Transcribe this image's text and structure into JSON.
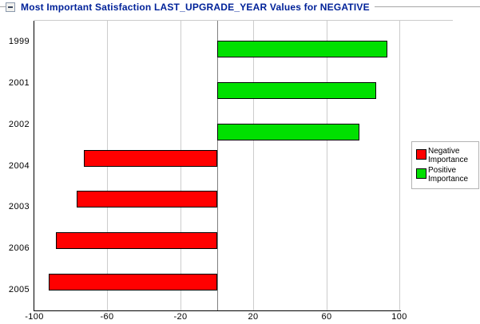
{
  "header": {
    "title": "Most Important Satisfaction LAST_UPGRADE_YEAR Values for NEGATIVE"
  },
  "chart_data": {
    "type": "bar",
    "orientation": "horizontal",
    "title": "Most Important Satisfaction LAST_UPGRADE_YEAR Values for NEGATIVE",
    "categories": [
      "1999",
      "2001",
      "2002",
      "2004",
      "2003",
      "2006",
      "2005"
    ],
    "series": [
      {
        "name": "Negative Importance",
        "color": "#ff0000",
        "values": [
          null,
          null,
          null,
          -73,
          -77,
          -88,
          -92
        ]
      },
      {
        "name": "Positive Importance",
        "color": "#00e000",
        "values": [
          93,
          87,
          78,
          null,
          null,
          null,
          null
        ]
      }
    ],
    "xlim": [
      -100,
      100
    ],
    "xticks": [
      -100,
      -60,
      -20,
      20,
      60,
      100
    ],
    "grid": "vertical-only",
    "zero_line": true,
    "legend_position": "right"
  }
}
